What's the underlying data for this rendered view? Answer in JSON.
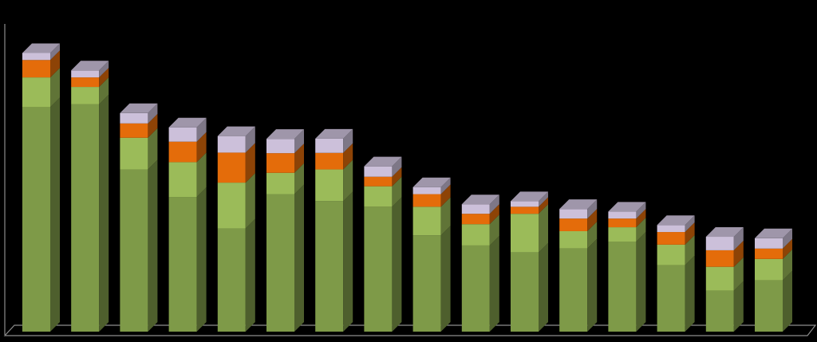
{
  "chart_data": {
    "type": "bar",
    "stacked": true,
    "three_d": true,
    "title": "",
    "xlabel": "",
    "ylabel": "",
    "legend": "none",
    "grid": false,
    "ylim": [
      0,
      100
    ],
    "categories": [
      "",
      "",
      "",
      "",
      "",
      "",
      "",
      "",
      "",
      "",
      "",
      "",
      "",
      "",
      "",
      ""
    ],
    "series": [
      {
        "color": "#7e9a48",
        "values": [
          80.0,
          81.0,
          57.8,
          48.0,
          36.8,
          49.0,
          46.5,
          44.5,
          34.3,
          30.7,
          28.2,
          29.6,
          32.1,
          23.7,
          14.6,
          18.3
        ]
      },
      {
        "color": "#9bbb59",
        "values": [
          10.6,
          6.2,
          11.3,
          12.4,
          16.3,
          7.6,
          11.3,
          7.3,
          10.2,
          7.6,
          13.8,
          6.2,
          5.1,
          7.3,
          8.5,
          7.6
        ]
      },
      {
        "color": "#e46c0a",
        "values": [
          6.2,
          3.4,
          5.1,
          7.3,
          10.7,
          7.0,
          5.9,
          3.4,
          4.5,
          3.7,
          2.5,
          4.5,
          3.1,
          4.5,
          5.9,
          3.7
        ]
      },
      {
        "color": "#ccc0da",
        "values": [
          2.5,
          2.5,
          3.7,
          5.1,
          5.9,
          5.1,
          5.1,
          3.7,
          2.5,
          3.4,
          2.0,
          3.4,
          2.5,
          2.5,
          4.8,
          3.7
        ]
      }
    ]
  }
}
